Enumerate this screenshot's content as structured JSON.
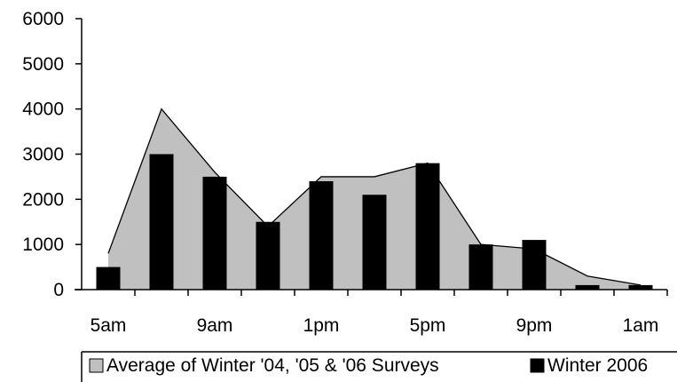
{
  "chart_data": {
    "type": "bar",
    "x": [
      "5am",
      "7am",
      "9am",
      "11am",
      "1pm",
      "3pm",
      "5pm",
      "7pm",
      "9pm",
      "11pm",
      "1am"
    ],
    "x_tick_labels": [
      "5am",
      "9am",
      "1pm",
      "5pm",
      "9pm",
      "1am"
    ],
    "series": [
      {
        "name": "Average of Winter '04, '05 & '06 Surveys",
        "type": "area",
        "color": "#C0C0C0",
        "values": [
          800,
          4000,
          2600,
          1400,
          2500,
          2500,
          2800,
          1000,
          900,
          300,
          100
        ]
      },
      {
        "name": "Winter 2006",
        "type": "bar",
        "color": "#000000",
        "values": [
          500,
          3000,
          2500,
          1500,
          2400,
          2100,
          2800,
          1000,
          1100,
          100,
          100
        ]
      }
    ],
    "ylim": [
      0,
      6000
    ],
    "y_ticks": [
      0,
      1000,
      2000,
      3000,
      4000,
      5000,
      6000
    ],
    "title": "",
    "xlabel": "",
    "ylabel": "",
    "grid": false,
    "legend_position": "bottom"
  }
}
